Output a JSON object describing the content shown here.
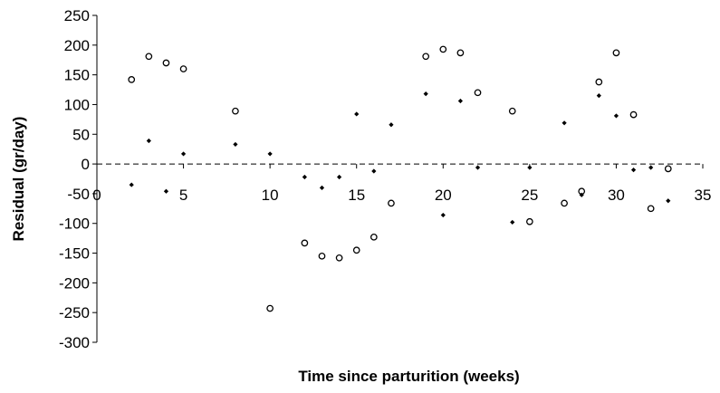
{
  "chart_data": {
    "type": "scatter",
    "title": "",
    "xlabel": "Time since parturition (weeks)",
    "ylabel": "Residual  (gr/day)",
    "xlim": [
      0,
      35
    ],
    "ylim": [
      -300,
      250
    ],
    "x_ticks": [
      0,
      5,
      10,
      15,
      20,
      25,
      30,
      35
    ],
    "y_ticks": [
      250,
      200,
      150,
      100,
      50,
      0,
      -50,
      -100,
      -150,
      -200,
      -250,
      -300
    ],
    "grid": false,
    "legend": "none",
    "reference_line": {
      "y": 0,
      "style": "dashed"
    },
    "series": [
      {
        "marker": "open-circle",
        "points": [
          [
            2,
            142
          ],
          [
            3,
            181
          ],
          [
            4,
            170
          ],
          [
            5,
            160
          ],
          [
            8,
            89
          ],
          [
            10,
            -243
          ],
          [
            12,
            -133
          ],
          [
            13,
            -155
          ],
          [
            14,
            -158
          ],
          [
            15,
            -145
          ],
          [
            16,
            -123
          ],
          [
            17,
            -66
          ],
          [
            19,
            181
          ],
          [
            20,
            193
          ],
          [
            21,
            187
          ],
          [
            22,
            120
          ],
          [
            24,
            89
          ],
          [
            25,
            -97
          ],
          [
            27,
            -66
          ],
          [
            28,
            -46
          ],
          [
            29,
            138
          ],
          [
            30,
            187
          ],
          [
            31,
            83
          ],
          [
            32,
            -75
          ],
          [
            33,
            -8
          ]
        ]
      },
      {
        "marker": "filled-diamond",
        "points": [
          [
            2,
            -35
          ],
          [
            3,
            39
          ],
          [
            4,
            -46
          ],
          [
            5,
            17
          ],
          [
            8,
            33
          ],
          [
            10,
            17
          ],
          [
            12,
            -22
          ],
          [
            13,
            -40
          ],
          [
            14,
            -22
          ],
          [
            15,
            84
          ],
          [
            16,
            -12
          ],
          [
            17,
            66
          ],
          [
            19,
            118
          ],
          [
            20,
            -86
          ],
          [
            21,
            106
          ],
          [
            22,
            -6
          ],
          [
            24,
            -98
          ],
          [
            25,
            -6
          ],
          [
            27,
            69
          ],
          [
            28,
            -52
          ],
          [
            29,
            115
          ],
          [
            30,
            81
          ],
          [
            31,
            -10
          ],
          [
            32,
            -6
          ],
          [
            33,
            -62
          ]
        ]
      }
    ]
  }
}
